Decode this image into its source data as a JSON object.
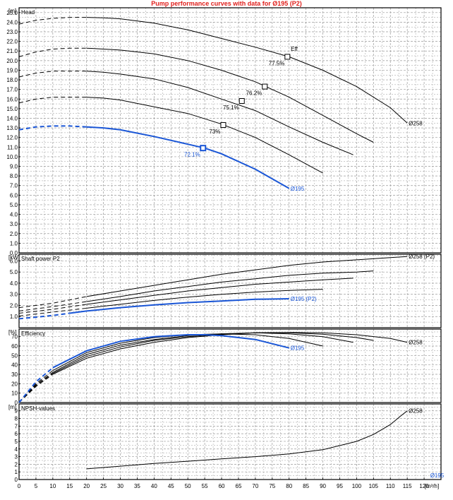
{
  "page": {
    "title": "Pump performance curves with data for Ø195 (P2)"
  },
  "colors": {
    "highlight": "#1a56d6",
    "curve": "#000000",
    "grid": "#9a9a9a",
    "title": "#e0201c"
  },
  "chart_data": [
    {
      "type": "line",
      "panel": "head",
      "title": "Head",
      "ylabel": "[m]",
      "xlim": [
        0,
        125
      ],
      "ylim": [
        0,
        25.5
      ],
      "yticks": [
        0.0,
        1.0,
        2.0,
        3.0,
        4.0,
        5.0,
        6.0,
        7.0,
        8.0,
        9.0,
        10.0,
        11.0,
        12.0,
        13.0,
        14.0,
        15.0,
        16.0,
        17.0,
        18.0,
        19.0,
        20.0,
        21.0,
        22.0,
        23.0,
        24.0,
        25.0
      ],
      "grid": true,
      "series": [
        {
          "name": "Ø258",
          "highlight": false,
          "dash_until": 20,
          "x": [
            0,
            5,
            10,
            15,
            20,
            25,
            30,
            40,
            50,
            60,
            70,
            80,
            90,
            100,
            110,
            115
          ],
          "y": [
            23.8,
            24.2,
            24.4,
            24.5,
            24.5,
            24.45,
            24.35,
            23.9,
            23.2,
            22.3,
            21.4,
            20.4,
            19.0,
            17.3,
            15.1,
            13.5
          ]
        },
        {
          "name": "",
          "highlight": false,
          "dash_until": 20,
          "x": [
            0,
            5,
            10,
            15,
            20,
            25,
            30,
            40,
            50,
            60,
            70,
            80,
            90,
            100,
            105
          ],
          "y": [
            20.4,
            20.9,
            21.2,
            21.3,
            21.3,
            21.2,
            21.1,
            20.7,
            20.0,
            19.0,
            17.8,
            16.2,
            14.3,
            12.4,
            11.5
          ]
        },
        {
          "name": "",
          "highlight": false,
          "dash_until": 20,
          "x": [
            0,
            5,
            10,
            15,
            20,
            25,
            30,
            40,
            50,
            60,
            70,
            80,
            90,
            99
          ],
          "y": [
            18.3,
            18.7,
            18.9,
            18.9,
            18.9,
            18.8,
            18.6,
            18.1,
            17.2,
            16.0,
            14.8,
            13.1,
            11.5,
            10.2
          ]
        },
        {
          "name": "",
          "highlight": false,
          "dash_until": 20,
          "x": [
            0,
            5,
            10,
            15,
            20,
            25,
            30,
            40,
            50,
            60,
            70,
            80,
            90
          ],
          "y": [
            15.6,
            16.0,
            16.2,
            16.2,
            16.2,
            16.1,
            15.9,
            15.2,
            14.5,
            13.4,
            12.0,
            10.2,
            8.3
          ]
        },
        {
          "name": "Ø195",
          "highlight": true,
          "dash_until": 20,
          "x": [
            0,
            5,
            10,
            15,
            20,
            25,
            30,
            40,
            50,
            55,
            60,
            70,
            80
          ],
          "y": [
            12.8,
            13.1,
            13.2,
            13.2,
            13.1,
            13.0,
            12.8,
            12.1,
            11.3,
            10.9,
            10.3,
            8.7,
            6.7
          ]
        }
      ],
      "markers": [
        {
          "x": 79.5,
          "y": 20.4,
          "label": "77.5%",
          "highlight": false
        },
        {
          "x": 72.8,
          "y": 17.3,
          "label": "76.2%",
          "highlight": false
        },
        {
          "x": 66.0,
          "y": 15.8,
          "label": "75.1%",
          "highlight": false
        },
        {
          "x": 60.5,
          "y": 13.3,
          "label": "73%",
          "highlight": false
        },
        {
          "x": 54.5,
          "y": 10.9,
          "label": "72.1%",
          "highlight": true
        }
      ],
      "annotations": [
        {
          "text": "Eff",
          "x": 80.5,
          "y": 21.0
        }
      ]
    },
    {
      "type": "line",
      "panel": "power",
      "title": "Shaft power P2",
      "ylabel": "[kW]",
      "xlim": [
        0,
        125
      ],
      "ylim": [
        0,
        6.6
      ],
      "yticks": [
        1.0,
        2.0,
        3.0,
        4.0,
        5.0,
        6.0
      ],
      "grid": true,
      "series": [
        {
          "name": "Ø258 (P2)",
          "highlight": false,
          "dash_until": 20,
          "x": [
            0,
            10,
            20,
            30,
            40,
            50,
            60,
            70,
            80,
            90,
            100,
            110,
            115
          ],
          "y": [
            1.8,
            2.2,
            2.8,
            3.3,
            3.8,
            4.3,
            4.8,
            5.2,
            5.6,
            5.9,
            6.1,
            6.3,
            6.4
          ]
        },
        {
          "name": "",
          "highlight": false,
          "dash_until": 20,
          "x": [
            0,
            10,
            20,
            30,
            40,
            50,
            60,
            70,
            80,
            90,
            100,
            105
          ],
          "y": [
            1.5,
            1.9,
            2.35,
            2.8,
            3.3,
            3.7,
            4.1,
            4.4,
            4.7,
            4.9,
            5.0,
            5.1
          ]
        },
        {
          "name": "",
          "highlight": false,
          "dash_until": 20,
          "x": [
            0,
            10,
            20,
            30,
            40,
            50,
            60,
            70,
            80,
            90,
            99
          ],
          "y": [
            1.3,
            1.65,
            2.1,
            2.5,
            2.9,
            3.3,
            3.6,
            3.9,
            4.1,
            4.3,
            4.45
          ]
        },
        {
          "name": "",
          "highlight": false,
          "dash_until": 20,
          "x": [
            0,
            10,
            20,
            30,
            40,
            50,
            60,
            70,
            80,
            90
          ],
          "y": [
            1.05,
            1.4,
            1.75,
            2.1,
            2.45,
            2.75,
            3.0,
            3.2,
            3.35,
            3.45
          ]
        },
        {
          "name": "Ø195 (P2)",
          "highlight": true,
          "dash_until": 15,
          "x": [
            0,
            10,
            15,
            20,
            30,
            40,
            50,
            60,
            70,
            80
          ],
          "y": [
            0.8,
            1.1,
            1.3,
            1.5,
            1.8,
            2.05,
            2.25,
            2.4,
            2.55,
            2.6
          ]
        }
      ]
    },
    {
      "type": "line",
      "panel": "efficiency",
      "title": "Efficiency",
      "ylabel": "[%]",
      "xlim": [
        0,
        125
      ],
      "ylim": [
        0,
        78
      ],
      "yticks": [
        0,
        10,
        20,
        30,
        40,
        50,
        60,
        70
      ],
      "grid": true,
      "series": [
        {
          "name": "Ø258",
          "highlight": false,
          "dash_until": 10,
          "x": [
            0,
            5,
            10,
            20,
            30,
            40,
            50,
            60,
            70,
            80,
            90,
            100,
            110,
            115
          ],
          "y": [
            0,
            17,
            30,
            47,
            57,
            64,
            69,
            72,
            74,
            74.5,
            74,
            72,
            68,
            64
          ]
        },
        {
          "name": "",
          "highlight": false,
          "dash_until": 10,
          "x": [
            0,
            5,
            10,
            20,
            30,
            40,
            50,
            60,
            70,
            80,
            90,
            100,
            105
          ],
          "y": [
            0,
            18,
            31,
            49,
            59,
            66,
            70,
            72.5,
            74,
            74,
            72.5,
            69,
            66
          ]
        },
        {
          "name": "",
          "highlight": false,
          "dash_until": 10,
          "x": [
            0,
            5,
            10,
            20,
            30,
            40,
            50,
            60,
            70,
            80,
            90,
            99
          ],
          "y": [
            0,
            19,
            32,
            51,
            61,
            67,
            71,
            73,
            74,
            73,
            70,
            64
          ]
        },
        {
          "name": "",
          "highlight": false,
          "dash_until": 10,
          "x": [
            0,
            5,
            10,
            20,
            30,
            40,
            50,
            60,
            70,
            80,
            90
          ],
          "y": [
            0,
            20,
            34,
            53,
            63,
            69,
            72,
            73,
            72,
            68,
            60
          ]
        },
        {
          "name": "Ø195",
          "highlight": true,
          "dash_until": 10,
          "x": [
            0,
            5,
            10,
            20,
            30,
            40,
            50,
            55,
            60,
            70,
            80
          ],
          "y": [
            0,
            22,
            37,
            55,
            65,
            70,
            72,
            72,
            71,
            67,
            58
          ]
        }
      ]
    },
    {
      "type": "line",
      "panel": "npsh",
      "title": "NPSH-values",
      "ylabel": "[m]",
      "xlabel": "[m³/h]",
      "xlim": [
        0,
        125
      ],
      "ylim": [
        0,
        9.9
      ],
      "xticks": [
        0,
        5,
        10,
        15,
        20,
        25,
        30,
        35,
        40,
        45,
        50,
        55,
        60,
        65,
        70,
        75,
        80,
        85,
        90,
        95,
        100,
        105,
        110,
        115,
        120
      ],
      "yticks": [
        0,
        1,
        2,
        3,
        4,
        5,
        6,
        7,
        8,
        9
      ],
      "grid": true,
      "series": [
        {
          "name": "Ø258",
          "highlight": false,
          "dash_until": 0,
          "x": [
            20,
            30,
            40,
            50,
            60,
            70,
            80,
            90,
            100,
            105,
            110,
            113,
            115
          ],
          "y": [
            1.4,
            1.75,
            2.1,
            2.4,
            2.7,
            3.0,
            3.35,
            3.9,
            5.0,
            5.9,
            7.2,
            8.3,
            9.0
          ]
        }
      ],
      "annotations": [
        {
          "text": "Ø195",
          "x": 121.8,
          "y": 0.3,
          "highlight": true
        }
      ]
    }
  ]
}
